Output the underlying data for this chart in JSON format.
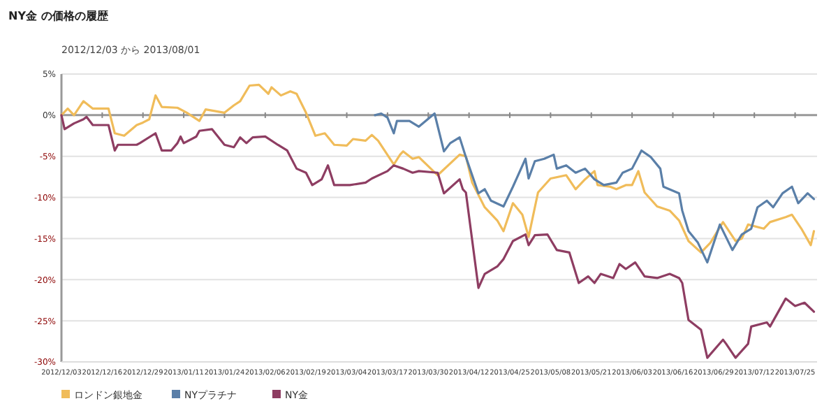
{
  "chart_data": {
    "type": "line",
    "title": "NY金 の価格の履歴",
    "subtitle": "2012/12/03 から 2013/08/01",
    "series": [
      {
        "name": "ロンドン銀地金",
        "color": "#f0bc5a",
        "x": [
          "2012-12-03",
          "2012-12-05",
          "2012-12-07",
          "2012-12-10",
          "2012-12-13",
          "2012-12-18",
          "2012-12-20",
          "2012-12-23",
          "2012-12-27",
          "2012-12-29",
          "2012-12-31",
          "2013-01-02",
          "2013-01-04",
          "2013-01-09",
          "2013-01-12",
          "2013-01-16",
          "2013-01-18",
          "2013-01-24",
          "2013-01-27",
          "2013-01-29",
          "2013-02-01",
          "2013-02-04",
          "2013-02-07",
          "2013-02-08",
          "2013-02-11",
          "2013-02-14",
          "2013-02-16",
          "2013-02-19",
          "2013-02-22",
          "2013-02-25",
          "2013-02-28",
          "2013-03-04",
          "2013-03-06",
          "2013-03-10",
          "2013-03-12",
          "2013-03-14",
          "2013-03-19",
          "2013-03-21",
          "2013-03-22",
          "2013-03-25",
          "2013-03-27",
          "2013-04-02",
          "2013-04-09",
          "2013-04-11",
          "2013-04-13",
          "2013-04-17",
          "2013-04-21",
          "2013-04-23",
          "2013-04-26",
          "2013-04-29",
          "2013-05-01",
          "2013-05-04",
          "2013-05-08",
          "2013-05-13",
          "2013-05-16",
          "2013-05-19",
          "2013-05-22",
          "2013-05-23",
          "2013-05-27",
          "2013-05-29",
          "2013-06-01",
          "2013-06-03",
          "2013-06-05",
          "2013-06-07",
          "2013-06-11",
          "2013-06-15",
          "2013-06-18",
          "2013-06-21",
          "2013-06-25",
          "2013-06-28",
          "2013-07-02",
          "2013-07-06",
          "2013-07-08",
          "2013-07-10",
          "2013-07-15",
          "2013-07-17",
          "2013-07-22",
          "2013-07-24",
          "2013-07-27",
          "2013-07-30",
          "2013-07-31"
        ],
        "values": [
          0,
          0.8,
          0,
          1.7,
          0.8,
          0.8,
          -2.2,
          -2.5,
          -1.2,
          -0.9,
          -0.5,
          2.4,
          1.0,
          0.9,
          0.3,
          -0.7,
          0.7,
          0.3,
          1.2,
          1.7,
          3.6,
          3.7,
          2.6,
          3.4,
          2.4,
          2.9,
          2.6,
          0.3,
          -2.5,
          -2.2,
          -3.6,
          -3.7,
          -2.9,
          -3.1,
          -2.4,
          -3.1,
          -6.0,
          -4.8,
          -4.4,
          -5.3,
          -5.1,
          -7.3,
          -4.8,
          -5.0,
          -8.2,
          -11.2,
          -12.8,
          -14.1,
          -10.7,
          -12.1,
          -14.8,
          -9.4,
          -7.7,
          -7.3,
          -9.0,
          -7.8,
          -6.8,
          -8.5,
          -8.7,
          -9.0,
          -8.5,
          -8.5,
          -6.8,
          -9.4,
          -11.1,
          -11.6,
          -12.8,
          -15.3,
          -16.7,
          -15.5,
          -13.0,
          -15.3,
          -15.0,
          -13.3,
          -13.8,
          -13.0,
          -12.4,
          -12.1,
          -13.8,
          -15.8,
          -14.1
        ]
      },
      {
        "name": "NYプラチナ",
        "color": "#5a7fa8",
        "x": [
          "2013-03-13",
          "2013-03-15",
          "2013-03-17",
          "2013-03-19",
          "2013-03-20",
          "2013-03-24",
          "2013-03-27",
          "2013-04-01",
          "2013-04-04",
          "2013-04-06",
          "2013-04-09",
          "2013-04-11",
          "2013-04-15",
          "2013-04-17",
          "2013-04-19",
          "2013-04-23",
          "2013-04-26",
          "2013-04-30",
          "2013-05-01",
          "2013-05-03",
          "2013-05-06",
          "2013-05-09",
          "2013-05-10",
          "2013-05-13",
          "2013-05-16",
          "2013-05-19",
          "2013-05-22",
          "2013-05-25",
          "2013-05-29",
          "2013-05-31",
          "2013-06-03",
          "2013-06-06",
          "2013-06-09",
          "2013-06-12",
          "2013-06-13",
          "2013-06-18",
          "2013-06-19",
          "2013-06-21",
          "2013-06-24",
          "2013-06-27",
          "2013-07-01",
          "2013-07-05",
          "2013-07-08",
          "2013-07-11",
          "2013-07-13",
          "2013-07-16",
          "2013-07-18",
          "2013-07-21",
          "2013-07-24",
          "2013-07-26",
          "2013-07-29",
          "2013-07-31"
        ],
        "values": [
          0,
          0.2,
          -0.3,
          -2.2,
          -0.7,
          -0.7,
          -1.4,
          0.2,
          -4.4,
          -3.4,
          -2.7,
          -5.1,
          -9.5,
          -9.0,
          -10.4,
          -11.1,
          -8.7,
          -5.3,
          -7.7,
          -5.6,
          -5.3,
          -4.8,
          -6.5,
          -6.1,
          -7.0,
          -6.5,
          -7.8,
          -8.5,
          -8.2,
          -7.0,
          -6.5,
          -4.3,
          -5.1,
          -6.5,
          -8.7,
          -9.5,
          -11.6,
          -14.1,
          -15.5,
          -17.9,
          -13.3,
          -16.4,
          -14.5,
          -13.8,
          -11.2,
          -10.4,
          -11.2,
          -9.5,
          -8.7,
          -10.7,
          -9.5,
          -10.2
        ]
      },
      {
        "name": "NY金",
        "color": "#8e3d62",
        "x": [
          "2012-12-03",
          "2012-12-04",
          "2012-12-07",
          "2012-12-10",
          "2012-12-11",
          "2012-12-13",
          "2012-12-18",
          "2012-12-20",
          "2012-12-21",
          "2012-12-27",
          "2012-12-28",
          "2013-01-02",
          "2013-01-04",
          "2013-01-07",
          "2013-01-09",
          "2013-01-10",
          "2013-01-11",
          "2013-01-15",
          "2013-01-16",
          "2013-01-20",
          "2013-01-24",
          "2013-01-27",
          "2013-01-29",
          "2013-01-31",
          "2013-02-02",
          "2013-02-06",
          "2013-02-10",
          "2013-02-13",
          "2013-02-16",
          "2013-02-19",
          "2013-02-21",
          "2013-02-24",
          "2013-02-26",
          "2013-02-28",
          "2013-03-05",
          "2013-03-10",
          "2013-03-12",
          "2013-03-17",
          "2013-03-19",
          "2013-03-22",
          "2013-03-25",
          "2013-03-27",
          "2013-04-02",
          "2013-04-04",
          "2013-04-09",
          "2013-04-10",
          "2013-04-11",
          "2013-04-15",
          "2013-04-17",
          "2013-04-21",
          "2013-04-23",
          "2013-04-26",
          "2013-04-30",
          "2013-05-01",
          "2013-05-03",
          "2013-05-07",
          "2013-05-10",
          "2013-05-14",
          "2013-05-17",
          "2013-05-20",
          "2013-05-22",
          "2013-05-24",
          "2013-05-28",
          "2013-05-30",
          "2013-06-01",
          "2013-06-04",
          "2013-06-07",
          "2013-06-11",
          "2013-06-15",
          "2013-06-18",
          "2013-06-19",
          "2013-06-21",
          "2013-06-25",
          "2013-06-27",
          "2013-07-02",
          "2013-07-03",
          "2013-07-06",
          "2013-07-10",
          "2013-07-11",
          "2013-07-16",
          "2013-07-17",
          "2013-07-22",
          "2013-07-25",
          "2013-07-28",
          "2013-07-31"
        ],
        "values": [
          0,
          -1.7,
          -1.0,
          -0.5,
          -0.2,
          -1.2,
          -1.2,
          -4.3,
          -3.6,
          -3.6,
          -3.4,
          -2.2,
          -4.3,
          -4.3,
          -3.4,
          -2.6,
          -3.4,
          -2.6,
          -1.9,
          -1.7,
          -3.6,
          -3.9,
          -2.7,
          -3.4,
          -2.7,
          -2.6,
          -3.6,
          -4.3,
          -6.5,
          -7.0,
          -8.5,
          -7.8,
          -6.1,
          -8.5,
          -8.5,
          -8.2,
          -7.7,
          -6.8,
          -6.1,
          -6.5,
          -7.0,
          -6.8,
          -7.0,
          -9.5,
          -7.8,
          -9.0,
          -9.4,
          -21.0,
          -19.3,
          -18.4,
          -17.5,
          -15.3,
          -14.5,
          -15.8,
          -14.6,
          -14.5,
          -16.4,
          -16.7,
          -20.4,
          -19.6,
          -20.4,
          -19.3,
          -19.8,
          -18.1,
          -18.7,
          -17.9,
          -19.6,
          -19.8,
          -19.3,
          -19.8,
          -20.4,
          -24.9,
          -26.1,
          -29.5,
          -27.3,
          -27.8,
          -29.5,
          -27.8,
          -25.7,
          -25.2,
          -25.7,
          -22.3,
          -23.2,
          -22.8,
          -23.9
        ]
      }
    ],
    "xlim": [
      "2012-12-03",
      "2013-08-01"
    ],
    "xticks": [
      {
        "value": "2012-12-03",
        "label": "2012/12/03"
      },
      {
        "value": "2012-12-16",
        "label": "2012/12/16"
      },
      {
        "value": "2012-12-29",
        "label": "2012/12/29"
      },
      {
        "value": "2013-01-11",
        "label": "2013/01/11"
      },
      {
        "value": "2013-01-24",
        "label": "2013/01/24"
      },
      {
        "value": "2013-02-06",
        "label": "2013/02/06"
      },
      {
        "value": "2013-02-19",
        "label": "2013/02/19"
      },
      {
        "value": "2013-03-04",
        "label": "2013/03/04"
      },
      {
        "value": "2013-03-17",
        "label": "2013/03/17"
      },
      {
        "value": "2013-03-30",
        "label": "2013/03/30"
      },
      {
        "value": "2013-04-12",
        "label": "2013/04/12"
      },
      {
        "value": "2013-04-25",
        "label": "2013/04/25"
      },
      {
        "value": "2013-05-08",
        "label": "2013/05/08"
      },
      {
        "value": "2013-05-21",
        "label": "2013/05/21"
      },
      {
        "value": "2013-06-03",
        "label": "2013/06/03"
      },
      {
        "value": "2013-06-16",
        "label": "2013/06/16"
      },
      {
        "value": "2013-06-29",
        "label": "2013/06/29"
      },
      {
        "value": "2013-07-12",
        "label": "2013/07/12"
      },
      {
        "value": "2013-07-25",
        "label": "2013/07/25"
      }
    ],
    "ylim": [
      -30,
      5
    ],
    "yticks": [
      {
        "value": 5,
        "label": "5%"
      },
      {
        "value": 0,
        "label": "0%"
      },
      {
        "value": -5,
        "label": "-5%"
      },
      {
        "value": -10,
        "label": "-10%"
      },
      {
        "value": -15,
        "label": "-15%"
      },
      {
        "value": -20,
        "label": "-20%"
      },
      {
        "value": -25,
        "label": "-25%"
      },
      {
        "value": -30,
        "label": "-30%"
      }
    ],
    "grid": "y",
    "legend": "bottom",
    "marker": "none",
    "line_style": "solid"
  }
}
